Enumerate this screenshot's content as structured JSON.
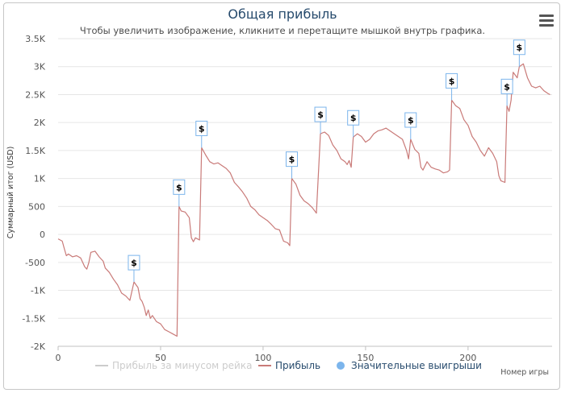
{
  "header": {
    "title": "Общая прибыль",
    "subtitle": "Чтобы увеличить изображение, кликните и перетащите мышкой внутрь графика."
  },
  "menu": {
    "icon": "hamburger-menu-icon"
  },
  "colors": {
    "line": "#c97a78",
    "flag_border": "#7cb5ec",
    "grid": "#e6e6e6",
    "title": "#274b6d",
    "legend_disabled": "#cccccc"
  },
  "chart_data": {
    "type": "line",
    "title": "Общая прибыль",
    "subtitle": "Чтобы увеличить изображение, кликните и перетащите мышкой внутрь графика.",
    "xlabel": "Номер игры",
    "ylabel": "Суммарный итог (USD)",
    "xlim": [
      0,
      241
    ],
    "ylim": [
      -2000,
      3500
    ],
    "x_ticks": [
      "0",
      "50",
      "100",
      "150",
      "200"
    ],
    "y_ticks": [
      "3.5K",
      "3K",
      "2.5K",
      "2K",
      "1.5K",
      "1K",
      "500",
      "0",
      "-500",
      "-1K",
      "-1.5K",
      "-2K"
    ],
    "grid": "horizontal",
    "legend_position": "bottom-center",
    "legend": [
      {
        "name": "Прибыль за минусом рейка",
        "color": "#cccccc",
        "marker": "line",
        "visible": false
      },
      {
        "name": "Прибыль",
        "color": "#c97a78",
        "marker": "line",
        "visible": true
      },
      {
        "name": "Значительные выигрыши",
        "color": "#7cb5ec",
        "marker": "circle",
        "visible": true
      }
    ],
    "series": [
      {
        "name": "Прибыль",
        "points": [
          [
            0,
            -80
          ],
          [
            2,
            -120
          ],
          [
            3,
            -250
          ],
          [
            4,
            -380
          ],
          [
            5,
            -350
          ],
          [
            7,
            -400
          ],
          [
            9,
            -380
          ],
          [
            11,
            -420
          ],
          [
            13,
            -580
          ],
          [
            14,
            -620
          ],
          [
            15,
            -500
          ],
          [
            16,
            -320
          ],
          [
            18,
            -300
          ],
          [
            20,
            -400
          ],
          [
            22,
            -480
          ],
          [
            23,
            -600
          ],
          [
            25,
            -680
          ],
          [
            27,
            -800
          ],
          [
            29,
            -900
          ],
          [
            31,
            -1050
          ],
          [
            33,
            -1100
          ],
          [
            35,
            -1180
          ],
          [
            37,
            -850
          ],
          [
            39,
            -950
          ],
          [
            40,
            -1150
          ],
          [
            41,
            -1200
          ],
          [
            42,
            -1300
          ],
          [
            43,
            -1450
          ],
          [
            44,
            -1350
          ],
          [
            45,
            -1500
          ],
          [
            46,
            -1450
          ],
          [
            48,
            -1560
          ],
          [
            50,
            -1600
          ],
          [
            52,
            -1700
          ],
          [
            54,
            -1740
          ],
          [
            56,
            -1780
          ],
          [
            58,
            -1820
          ],
          [
            59,
            500
          ],
          [
            60,
            420
          ],
          [
            62,
            400
          ],
          [
            64,
            300
          ],
          [
            65,
            -60
          ],
          [
            66,
            -130
          ],
          [
            67,
            -60
          ],
          [
            69,
            -100
          ],
          [
            70,
            1550
          ],
          [
            72,
            1420
          ],
          [
            74,
            1300
          ],
          [
            76,
            1260
          ],
          [
            78,
            1280
          ],
          [
            80,
            1230
          ],
          [
            82,
            1180
          ],
          [
            84,
            1100
          ],
          [
            86,
            930
          ],
          [
            88,
            850
          ],
          [
            90,
            760
          ],
          [
            92,
            650
          ],
          [
            94,
            500
          ],
          [
            96,
            440
          ],
          [
            98,
            350
          ],
          [
            100,
            300
          ],
          [
            102,
            250
          ],
          [
            104,
            180
          ],
          [
            106,
            100
          ],
          [
            108,
            80
          ],
          [
            110,
            -120
          ],
          [
            112,
            -150
          ],
          [
            113,
            -200
          ],
          [
            114,
            1000
          ],
          [
            116,
            900
          ],
          [
            118,
            700
          ],
          [
            120,
            600
          ],
          [
            122,
            550
          ],
          [
            124,
            480
          ],
          [
            126,
            380
          ],
          [
            128,
            1800
          ],
          [
            130,
            1830
          ],
          [
            132,
            1770
          ],
          [
            134,
            1600
          ],
          [
            136,
            1500
          ],
          [
            138,
            1350
          ],
          [
            140,
            1300
          ],
          [
            141,
            1250
          ],
          [
            142,
            1320
          ],
          [
            143,
            1200
          ],
          [
            144,
            1740
          ],
          [
            146,
            1800
          ],
          [
            148,
            1750
          ],
          [
            150,
            1650
          ],
          [
            152,
            1700
          ],
          [
            154,
            1800
          ],
          [
            156,
            1850
          ],
          [
            158,
            1870
          ],
          [
            160,
            1900
          ],
          [
            162,
            1850
          ],
          [
            164,
            1800
          ],
          [
            166,
            1750
          ],
          [
            168,
            1700
          ],
          [
            170,
            1500
          ],
          [
            171,
            1350
          ],
          [
            172,
            1700
          ],
          [
            174,
            1520
          ],
          [
            176,
            1450
          ],
          [
            177,
            1200
          ],
          [
            178,
            1150
          ],
          [
            180,
            1300
          ],
          [
            182,
            1200
          ],
          [
            184,
            1170
          ],
          [
            186,
            1150
          ],
          [
            188,
            1100
          ],
          [
            190,
            1120
          ],
          [
            191,
            1150
          ],
          [
            192,
            2400
          ],
          [
            194,
            2300
          ],
          [
            196,
            2250
          ],
          [
            198,
            2050
          ],
          [
            200,
            1950
          ],
          [
            202,
            1750
          ],
          [
            204,
            1650
          ],
          [
            206,
            1500
          ],
          [
            208,
            1400
          ],
          [
            210,
            1550
          ],
          [
            212,
            1450
          ],
          [
            214,
            1300
          ],
          [
            215,
            1050
          ],
          [
            216,
            960
          ],
          [
            218,
            930
          ],
          [
            219,
            2300
          ],
          [
            220,
            2200
          ],
          [
            221,
            2400
          ],
          [
            222,
            2900
          ],
          [
            224,
            2800
          ],
          [
            225,
            3000
          ],
          [
            227,
            3050
          ],
          [
            229,
            2800
          ],
          [
            231,
            2650
          ],
          [
            233,
            2620
          ],
          [
            235,
            2650
          ],
          [
            237,
            2570
          ],
          [
            239,
            2520
          ],
          [
            240,
            2500
          ]
        ]
      },
      {
        "name": "Значительные выигрыши",
        "flag_label": "$",
        "points": [
          [
            37,
            -850
          ],
          [
            59,
            500
          ],
          [
            70,
            1550
          ],
          [
            114,
            1000
          ],
          [
            128,
            1800
          ],
          [
            144,
            1740
          ],
          [
            172,
            1700
          ],
          [
            192,
            2400
          ],
          [
            219,
            2300
          ],
          [
            225,
            3000
          ]
        ]
      }
    ]
  }
}
